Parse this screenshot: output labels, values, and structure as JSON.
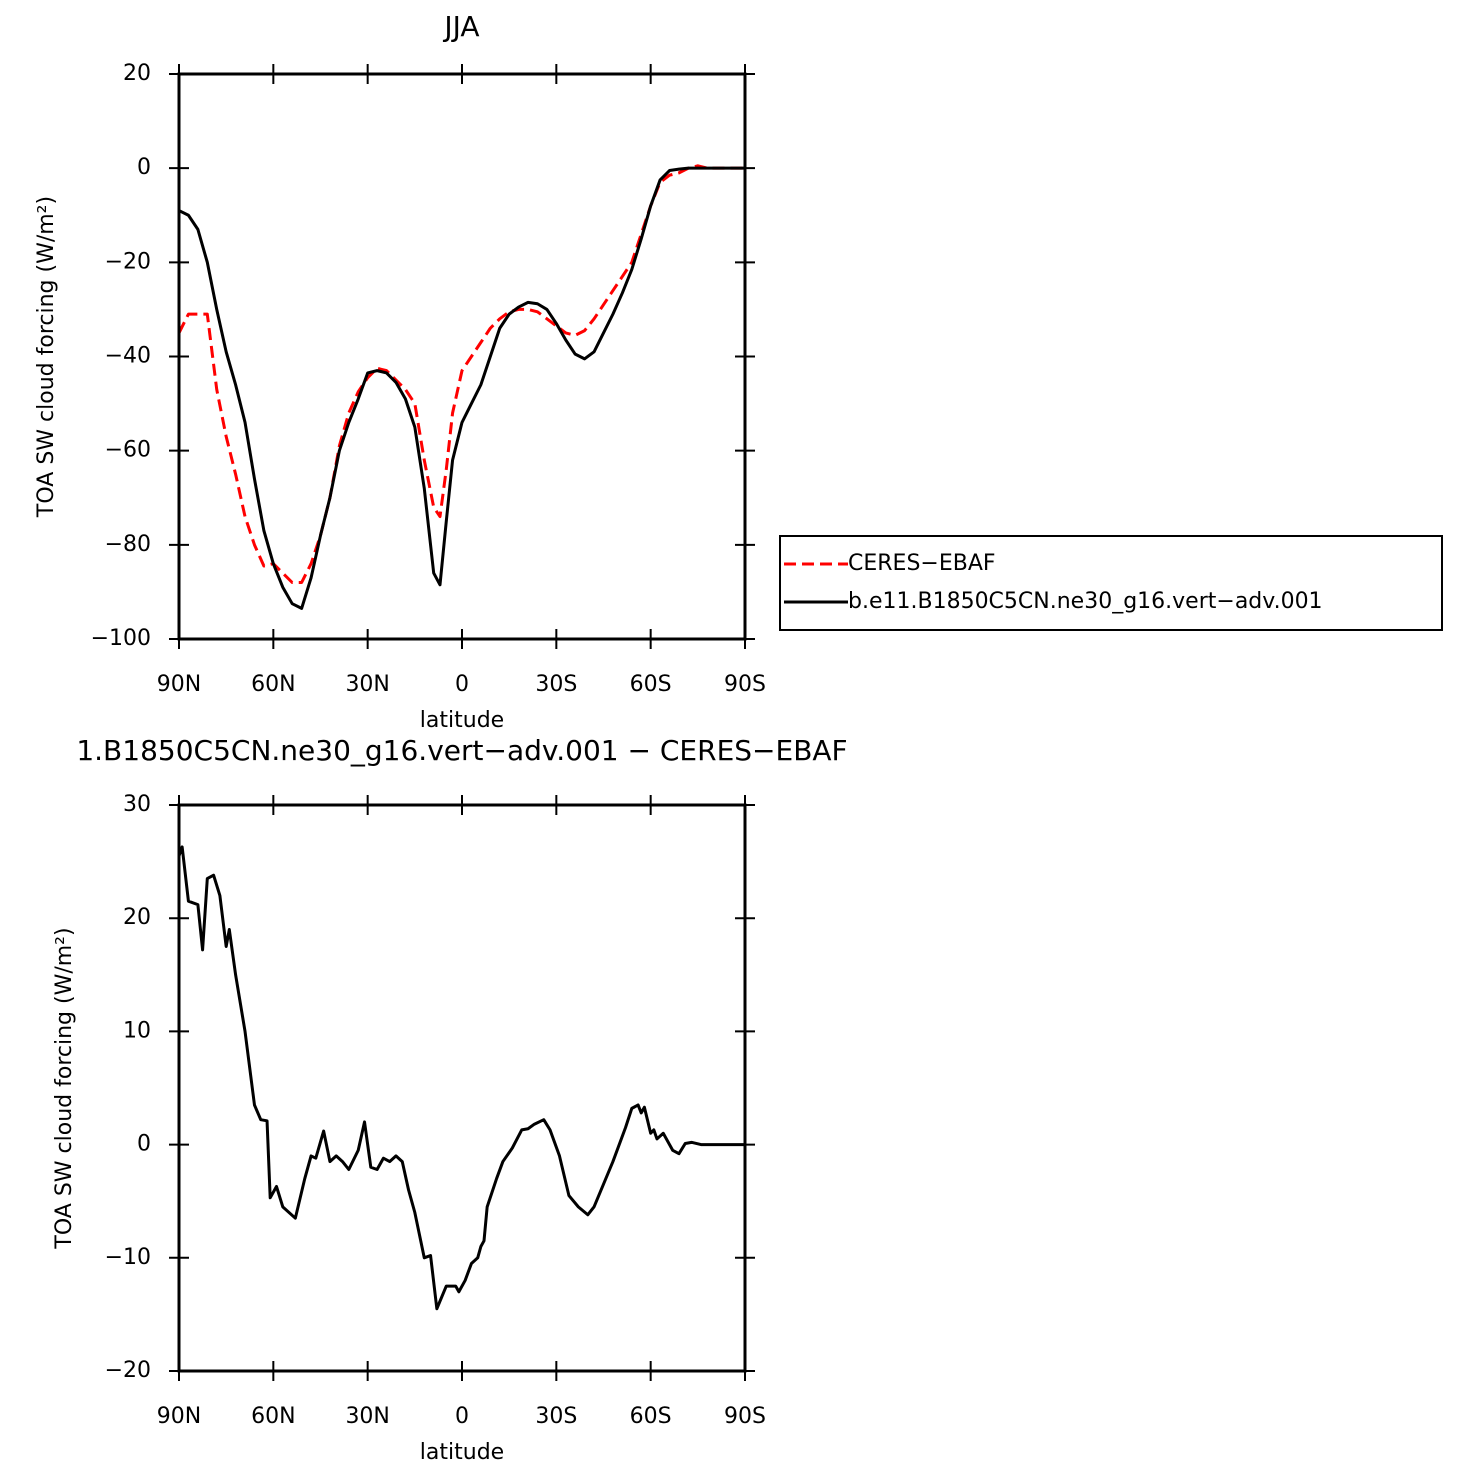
{
  "chart_data": [
    {
      "type": "line",
      "title": "JJA",
      "xlabel": "latitude",
      "ylabel": "TOA SW cloud forcing (W/m²)",
      "x": [
        90,
        87,
        84,
        81,
        78,
        75,
        72,
        69,
        66,
        63,
        60,
        57,
        54,
        51,
        48,
        45,
        42,
        39,
        36,
        33,
        30,
        27,
        24,
        21,
        18,
        15,
        12,
        9,
        7,
        5,
        3,
        0,
        -3,
        -6,
        -9,
        -12,
        -15,
        -18,
        -21,
        -24,
        -27,
        -30,
        -33,
        -36,
        -39,
        -42,
        -45,
        -48,
        -51,
        -54,
        -57,
        -60,
        -63,
        -66,
        -69,
        -72,
        -75,
        -78,
        -81,
        -84,
        -87,
        -90
      ],
      "series": [
        {
          "name": "CERES−EBAF",
          "color": "#ff0000",
          "linestyle": "dashed",
          "values": [
            -35,
            -31,
            -31,
            -31,
            -47,
            -57,
            -65,
            -74,
            -80,
            -84.5,
            -84,
            -86,
            -88,
            -88,
            -84,
            -78,
            -70,
            -59,
            -52,
            -47.5,
            -44.5,
            -42.5,
            -43,
            -45,
            -47,
            -50,
            -62,
            -72,
            -74,
            -64,
            -52,
            -43,
            -40,
            -37,
            -34,
            -32,
            -30.5,
            -30,
            -30,
            -30.5,
            -32,
            -33.5,
            -35,
            -35.5,
            -34.5,
            -32,
            -29,
            -26,
            -23,
            -20,
            -14,
            -8,
            -3,
            -1.5,
            -1,
            0,
            0.5,
            0,
            0,
            0,
            0,
            0
          ]
        },
        {
          "name": "b.e11.B1850C5CN.ne30_g16.vert−adv.001",
          "color": "#000000",
          "linestyle": "solid",
          "values": [
            -9,
            -10,
            -13,
            -20,
            -30,
            -39,
            -46,
            -54,
            -66,
            -77,
            -84,
            -89,
            -92.5,
            -93.5,
            -87,
            -78,
            -70,
            -60,
            -54,
            -49,
            -43.5,
            -43,
            -43.5,
            -45.5,
            -49,
            -55,
            -68,
            -86,
            -88.5,
            -75,
            -62,
            -54,
            -50,
            -46,
            -40,
            -34,
            -31,
            -29.5,
            -28.5,
            -28.8,
            -30,
            -33,
            -36.5,
            -39.5,
            -40.5,
            -39,
            -35,
            -31,
            -26.5,
            -21.5,
            -15,
            -8,
            -2.5,
            -0.5,
            -0.2,
            0,
            0,
            0,
            0,
            0,
            0,
            0
          ]
        }
      ],
      "xlim": [
        90,
        -90
      ],
      "xticks": [
        {
          "value": 90,
          "label": "90N"
        },
        {
          "value": 60,
          "label": "60N"
        },
        {
          "value": 30,
          "label": "30N"
        },
        0,
        {
          "value": -30,
          "label": "30S"
        },
        {
          "value": -60,
          "label": "60S"
        },
        {
          "value": -90,
          "label": "90S"
        }
      ],
      "ylim": [
        -100,
        20
      ],
      "yticks": [
        20,
        0,
        {
          "value": -20,
          "label": "−20"
        },
        {
          "value": -40,
          "label": "−40"
        },
        {
          "value": -60,
          "label": "−60"
        },
        {
          "value": -80,
          "label": "−80"
        },
        {
          "value": -100,
          "label": "−100"
        }
      ],
      "legend": "right"
    },
    {
      "type": "line",
      "title": "1.B1850C5CN.ne30_g16.vert−adv.001 − CERES−EBAF",
      "xlabel": "latitude",
      "ylabel": "TOA SW cloud forcing (W/m²)",
      "x": [
        90,
        89,
        87,
        84,
        82.5,
        81,
        79,
        77,
        75,
        74,
        72,
        69,
        66,
        64,
        62,
        61,
        59,
        57,
        53,
        50,
        48,
        46.5,
        44,
        42,
        40,
        38,
        36,
        33,
        31,
        29,
        27,
        25,
        23,
        21,
        19,
        17,
        15,
        12,
        10,
        8,
        5,
        2,
        1,
        -1,
        -3,
        -5,
        -6,
        -7,
        -8,
        -11,
        -13,
        -16,
        -19,
        -21,
        -23,
        -26,
        -28,
        -31,
        -34,
        -37,
        -40,
        -42,
        -45,
        -48,
        -52,
        -54,
        -56,
        -57,
        -58,
        -60,
        -61,
        -62,
        -64,
        -67,
        -69,
        -71,
        -73,
        -76,
        -90
      ],
      "values": [
        25.5,
        26.3,
        21.5,
        21.2,
        17.2,
        23.5,
        23.8,
        22,
        17.5,
        19,
        15,
        10,
        3.5,
        2.2,
        2.1,
        -4.7,
        -3.7,
        -5.5,
        -6.5,
        -3,
        -1,
        -1.2,
        1.2,
        -1.5,
        -1,
        -1.5,
        -2.2,
        -0.5,
        2,
        -2,
        -2.2,
        -1.2,
        -1.5,
        -1,
        -1.5,
        -4,
        -6,
        -10,
        -9.8,
        -14.5,
        -12.5,
        -12.5,
        -13,
        -12,
        -10.5,
        -10,
        -9,
        -8.5,
        -5.5,
        -3,
        -1.5,
        -0.3,
        1.3,
        1.4,
        1.8,
        2.2,
        1.3,
        -1,
        -4.5,
        -5.5,
        -6.2,
        -5.5,
        -3.5,
        -1.5,
        1.5,
        3.2,
        3.5,
        2.8,
        3.3,
        1,
        1.3,
        0.5,
        1,
        -0.5,
        -0.8,
        0.1,
        0.2,
        0,
        0
      ],
      "color": "#000000",
      "xlim": [
        90,
        -90
      ],
      "xticks": [
        {
          "value": 90,
          "label": "90N"
        },
        {
          "value": 60,
          "label": "60N"
        },
        {
          "value": 30,
          "label": "30N"
        },
        0,
        {
          "value": -30,
          "label": "30S"
        },
        {
          "value": -60,
          "label": "60S"
        },
        {
          "value": -90,
          "label": "90S"
        }
      ],
      "ylim": [
        -20,
        30
      ],
      "yticks": [
        30,
        20,
        10,
        0,
        {
          "value": -10,
          "label": "−10"
        },
        {
          "value": -20,
          "label": "−20"
        }
      ]
    }
  ]
}
